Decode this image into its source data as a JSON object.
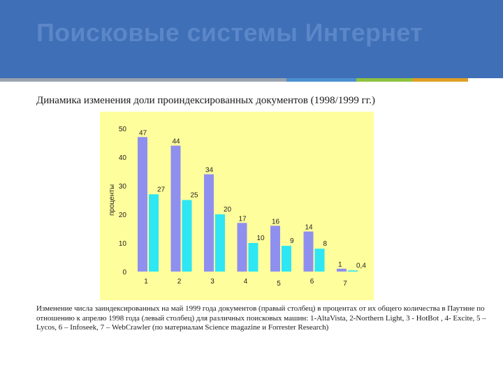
{
  "slide": {
    "title": "Поисковые системы Интернет",
    "subtitle": "Динамика изменения доли проиндексированных документов (1998/1999 гг.)",
    "caption": "Изменение числа заиндексированных на май 1999 года документов (правый столбец) в процентах от их общего количества в Паутине по отношению к апрелю 1998 года (левый столбец) для различных поисковых машин: 1-AltaVista, 2-Northern Light, 3 - HotBot , 4- Excite, 5 – Lycos, 6 – Infoseek, 7 – WebCrawler (по материалам Science magazine и Forrester Research)"
  },
  "colors": {
    "header_bg": "#3f6fb6",
    "title_text": "#5b86c8",
    "accent_gray": "#9aa3ad",
    "accent_blue": "#4a90d0",
    "accent_green": "#8ec23f",
    "accent_orange": "#e0a024",
    "chart_bg": "#fffe9c",
    "series_1998": "#8f8ff0",
    "series_1999": "#2ee6f4"
  },
  "chart_data": {
    "type": "bar",
    "ylabel": "проценты",
    "ylim": [
      0,
      50
    ],
    "yticks": [
      "0",
      "10",
      "20",
      "30",
      "40",
      "50"
    ],
    "categories": [
      "1",
      "2",
      "3",
      "4",
      "5",
      "6",
      "7"
    ],
    "series": [
      {
        "values": [
          47,
          44,
          34,
          17,
          16,
          14,
          1
        ],
        "labels": [
          "47",
          "44",
          "34",
          "17",
          "16",
          "14",
          "1"
        ]
      },
      {
        "values": [
          27,
          25,
          20,
          10,
          9,
          8,
          0.4
        ],
        "labels": [
          "27",
          "25",
          "20",
          "10",
          "9",
          "8",
          "0,4"
        ]
      }
    ],
    "grid": false,
    "legend": "none"
  }
}
